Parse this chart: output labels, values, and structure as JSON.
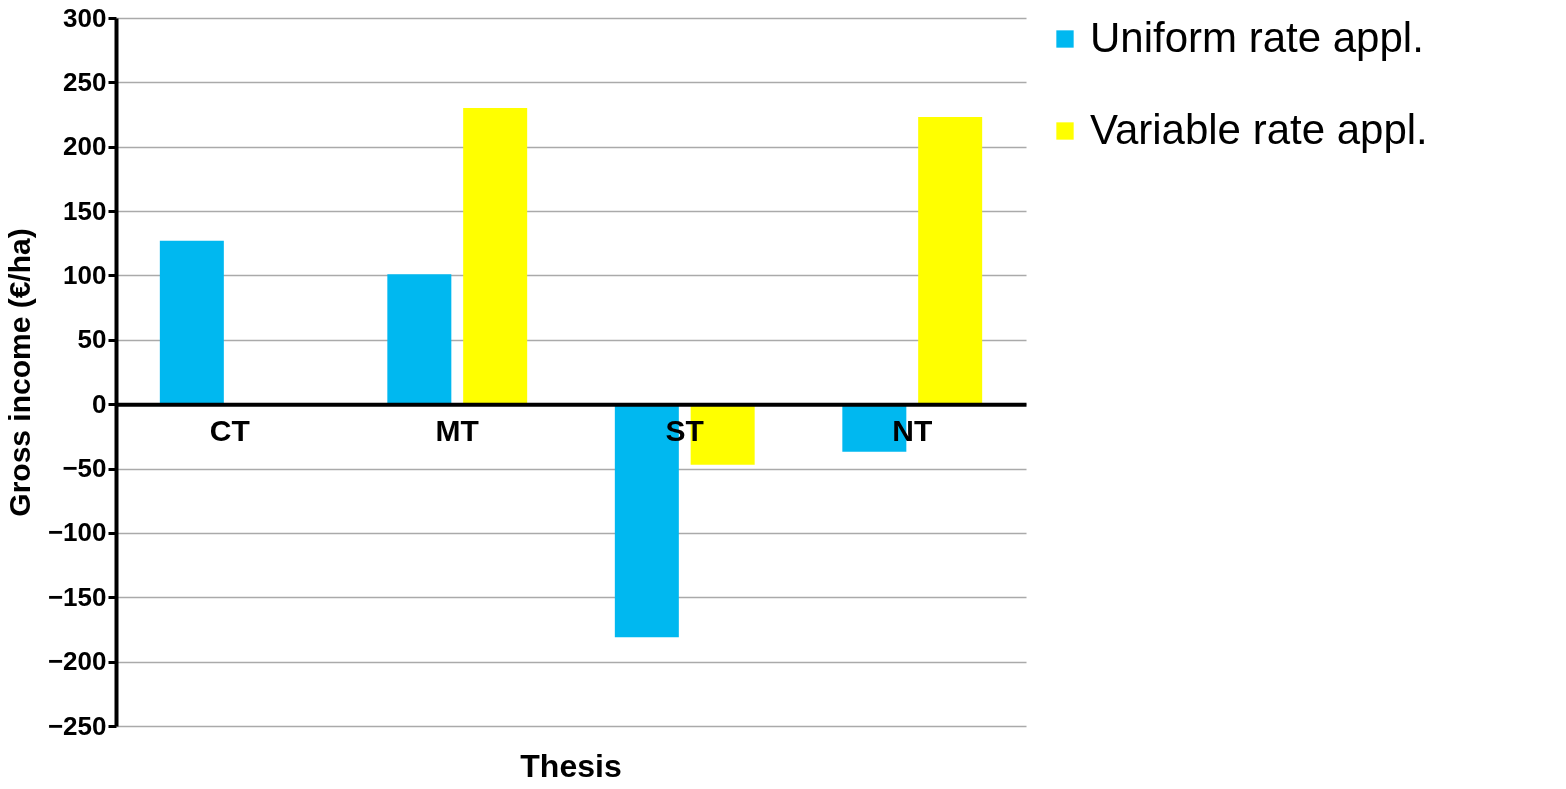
{
  "chart_data": {
    "type": "bar",
    "xlabel": "Thesis",
    "ylabel": "Gross income (€/ha)",
    "categories": [
      "CT",
      "MT",
      "ST",
      "NT"
    ],
    "series": [
      {
        "name": "Uniform rate appl.",
        "color": "#00b8f0",
        "values": [
          127,
          101,
          -181,
          -37
        ]
      },
      {
        "name": "Variable rate appl.",
        "color": "#ffff00",
        "values": [
          null,
          230,
          -47,
          223
        ]
      }
    ],
    "ylim": [
      -250,
      300
    ],
    "yticks": [
      -250,
      -200,
      -150,
      -100,
      -50,
      0,
      50,
      100,
      150,
      200,
      250,
      300
    ],
    "grid": "y",
    "legend": "right"
  }
}
